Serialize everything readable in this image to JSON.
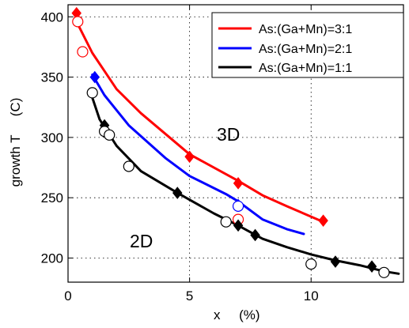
{
  "chart_data": {
    "type": "scatter",
    "xlabel": "x     (%)",
    "ylabel": "growth T     (C)",
    "xlim": [
      0,
      13.8
    ],
    "ylim": [
      180,
      410
    ],
    "x_ticks": [
      0,
      5,
      10
    ],
    "y_ticks": [
      200,
      250,
      300,
      350,
      400
    ],
    "grid": true,
    "legend_position": "top-right",
    "region_labels": [
      "3D",
      "2D"
    ],
    "series": [
      {
        "name": "As:(Ga+Mn)=3:1",
        "color": "#ff0000",
        "line": [
          [
            0.3,
            398
          ],
          [
            1.0,
            370
          ],
          [
            2.0,
            340
          ],
          [
            3.0,
            320
          ],
          [
            5.0,
            286
          ],
          [
            7.0,
            264
          ],
          [
            8.0,
            252
          ],
          [
            9.0,
            243
          ],
          [
            10.5,
            230
          ]
        ],
        "diamonds": [
          [
            0.35,
            403
          ],
          [
            5.0,
            284
          ],
          [
            7.0,
            262
          ],
          [
            10.5,
            231
          ]
        ],
        "circles": [
          [
            0.4,
            396
          ],
          [
            0.6,
            371
          ],
          [
            7.0,
            232
          ]
        ]
      },
      {
        "name": "As:(Ga+Mn)=2:1",
        "color": "#0000ff",
        "line": [
          [
            1.0,
            352
          ],
          [
            1.5,
            335
          ],
          [
            2.5,
            310
          ],
          [
            4.0,
            283
          ],
          [
            5.0,
            268
          ],
          [
            6.5,
            253
          ],
          [
            7.0,
            247
          ],
          [
            8.0,
            232
          ],
          [
            9.0,
            224
          ],
          [
            9.7,
            220
          ]
        ],
        "diamonds": [
          [
            1.1,
            350
          ],
          [
            7.0,
            244
          ]
        ],
        "circles": [
          [
            7.0,
            243
          ]
        ]
      },
      {
        "name": "As:(Ga+Mn)=1:1",
        "color": "#000000",
        "line": [
          [
            1.0,
            333
          ],
          [
            1.3,
            315
          ],
          [
            2.0,
            293
          ],
          [
            3.0,
            272
          ],
          [
            4.5,
            254
          ],
          [
            6.0,
            237
          ],
          [
            7.0,
            227
          ],
          [
            8.0,
            216
          ],
          [
            9.0,
            209
          ],
          [
            10.0,
            203
          ],
          [
            11.0,
            198
          ],
          [
            12.0,
            194
          ],
          [
            13.0,
            189
          ],
          [
            13.6,
            187
          ]
        ],
        "diamonds": [
          [
            1.5,
            310
          ],
          [
            4.5,
            254
          ],
          [
            7.0,
            227
          ],
          [
            7.7,
            219
          ],
          [
            11.0,
            197
          ],
          [
            12.5,
            193
          ]
        ],
        "circles": [
          [
            1.0,
            337
          ],
          [
            1.5,
            305
          ],
          [
            1.7,
            302
          ],
          [
            2.5,
            276
          ],
          [
            6.5,
            230
          ],
          [
            10.0,
            195
          ],
          [
            13.0,
            188
          ]
        ]
      }
    ]
  }
}
